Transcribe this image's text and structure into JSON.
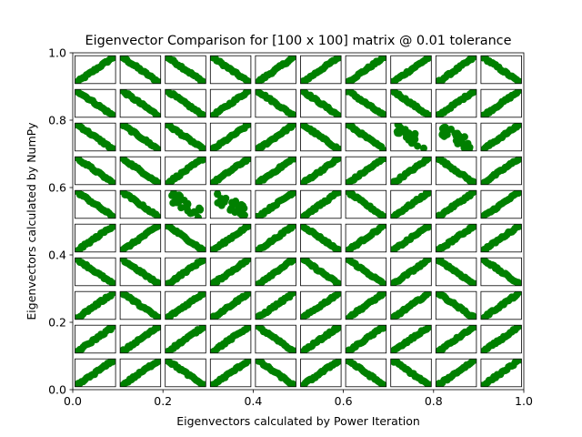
{
  "chart_data": {
    "type": "scatter",
    "title": "Eigenvector Comparison for [100 x 100] matrix @ 0.01 tolerance",
    "xlabel": "Eigenvectors calculated by Power Iteration",
    "ylabel": "Eigenvectors calculated by NumPy",
    "xlim": [
      0.0,
      1.0
    ],
    "ylim": [
      0.0,
      1.0
    ],
    "xticks": [
      "0.0",
      "0.2",
      "0.4",
      "0.6",
      "0.8",
      "1.0"
    ],
    "yticks": [
      "0.0",
      "0.2",
      "0.4",
      "0.6",
      "0.8",
      "1.0"
    ],
    "grid": false,
    "marker_color": "#008000",
    "subplot_grid": {
      "rows": 10,
      "cols": 10
    },
    "subplot_trends": [
      [
        "pos",
        "neg",
        "neg",
        "neg",
        "pos",
        "pos",
        "pos",
        "pos",
        "pos",
        "neg"
      ],
      [
        "neg",
        "neg",
        "neg",
        "pos",
        "neg",
        "neg",
        "neg",
        "neg",
        "pos",
        "pos"
      ],
      [
        "neg",
        "neg",
        "neg",
        "pos",
        "pos",
        "neg",
        "neg",
        "scatter",
        "scatter",
        "pos"
      ],
      [
        "neg",
        "neg",
        "pos",
        "pos",
        "pos",
        "pos",
        "pos",
        "pos",
        "neg",
        "pos"
      ],
      [
        "neg",
        "neg",
        "scatter",
        "scatter",
        "pos",
        "pos",
        "neg",
        "pos",
        "pos",
        "pos"
      ],
      [
        "pos",
        "pos",
        "neg",
        "pos",
        "pos",
        "neg",
        "pos",
        "pos",
        "pos",
        "pos"
      ],
      [
        "neg",
        "neg",
        "pos",
        "pos",
        "pos",
        "neg",
        "neg",
        "pos",
        "neg",
        "neg"
      ],
      [
        "pos",
        "neg",
        "pos",
        "pos",
        "pos",
        "pos",
        "pos",
        "pos",
        "neg",
        "pos"
      ],
      [
        "pos",
        "pos",
        "pos",
        "pos",
        "neg",
        "pos",
        "pos",
        "pos",
        "pos",
        "pos"
      ],
      [
        "pos",
        "pos",
        "neg",
        "pos",
        "neg",
        "pos",
        "neg",
        "neg",
        "pos",
        "pos"
      ]
    ]
  }
}
